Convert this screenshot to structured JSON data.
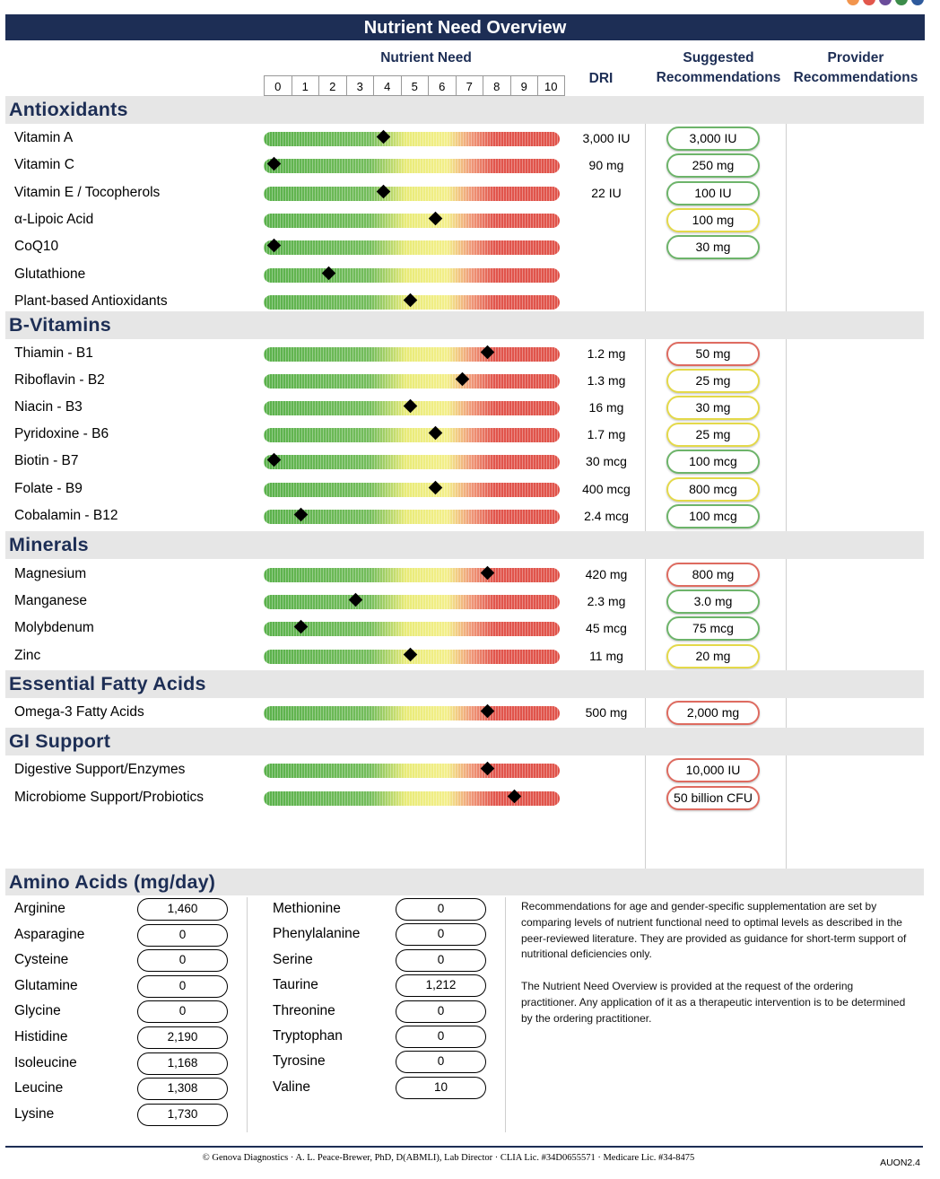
{
  "header": {
    "title": "Nutrient Need Overview",
    "nutrient_need": "Nutrient Need",
    "dri": "DRI",
    "suggested": [
      "Suggested",
      "Recommendations"
    ],
    "provider": [
      "Provider",
      "Recommendations"
    ],
    "scale": [
      "0",
      "1",
      "2",
      "3",
      "4",
      "5",
      "6",
      "7",
      "8",
      "9",
      "10"
    ],
    "dot_colors": [
      "#f2954d",
      "#e2574c",
      "#6b4c9a",
      "#3c8c4a",
      "#2e5a9c"
    ]
  },
  "sections": [
    {
      "title": "Antioxidants",
      "rows": [
        {
          "name": "Vitamin A",
          "value": 4.4,
          "dri": "3,000 IU",
          "rec": "3,000 IU",
          "rec_color": "green"
        },
        {
          "name": "Vitamin C",
          "value": 0.4,
          "dri": "90 mg",
          "rec": "250 mg",
          "rec_color": "green"
        },
        {
          "name": "Vitamin E / Tocopherols",
          "value": 4.4,
          "dri": "22 IU",
          "rec": "100 IU",
          "rec_color": "green"
        },
        {
          "name": "α-Lipoic Acid",
          "value": 6.3,
          "dri": "",
          "rec": "100 mg",
          "rec_color": "yellow"
        },
        {
          "name": "CoQ10",
          "value": 0.4,
          "dri": "",
          "rec": "30 mg",
          "rec_color": "green"
        },
        {
          "name": "Glutathione",
          "value": 2.4,
          "dri": "",
          "rec": "",
          "rec_color": ""
        },
        {
          "name": "Plant-based Antioxidants",
          "value": 5.4,
          "dri": "",
          "rec": "",
          "rec_color": ""
        }
      ]
    },
    {
      "title": "B-Vitamins",
      "rows": [
        {
          "name": "Thiamin - B1",
          "value": 8.2,
          "dri": "1.2 mg",
          "rec": "50 mg",
          "rec_color": "red"
        },
        {
          "name": "Riboflavin - B2",
          "value": 7.3,
          "dri": "1.3 mg",
          "rec": "25 mg",
          "rec_color": "yellow"
        },
        {
          "name": "Niacin - B3",
          "value": 5.4,
          "dri": "16 mg",
          "rec": "30 mg",
          "rec_color": "yellow"
        },
        {
          "name": "Pyridoxine - B6",
          "value": 6.3,
          "dri": "1.7 mg",
          "rec": "25 mg",
          "rec_color": "yellow"
        },
        {
          "name": "Biotin - B7",
          "value": 0.4,
          "dri": "30 mcg",
          "rec": "100 mcg",
          "rec_color": "green"
        },
        {
          "name": "Folate - B9",
          "value": 6.3,
          "dri": "400 mcg",
          "rec": "800 mcg",
          "rec_color": "yellow"
        },
        {
          "name": "Cobalamin - B12",
          "value": 1.4,
          "dri": "2.4 mcg",
          "rec": "100 mcg",
          "rec_color": "green"
        }
      ]
    },
    {
      "title": "Minerals",
      "rows": [
        {
          "name": "Magnesium",
          "value": 8.2,
          "dri": "420 mg",
          "rec": "800 mg",
          "rec_color": "red"
        },
        {
          "name": "Manganese",
          "value": 3.4,
          "dri": "2.3 mg",
          "rec": "3.0 mg",
          "rec_color": "green"
        },
        {
          "name": "Molybdenum",
          "value": 1.4,
          "dri": "45 mcg",
          "rec": "75 mcg",
          "rec_color": "green"
        },
        {
          "name": "Zinc",
          "value": 5.4,
          "dri": "11 mg",
          "rec": "20 mg",
          "rec_color": "yellow"
        }
      ]
    },
    {
      "title": "Essential Fatty Acids",
      "rows": [
        {
          "name": "Omega-3 Fatty Acids",
          "value": 8.2,
          "dri": "500 mg",
          "rec": "2,000 mg",
          "rec_color": "red"
        }
      ]
    },
    {
      "title": "GI Support",
      "rows": [
        {
          "name": "Digestive Support/Enzymes",
          "value": 8.2,
          "dri": "",
          "rec": "10,000 IU",
          "rec_color": "red"
        },
        {
          "name": "Microbiome Support/Probiotics",
          "value": 9.2,
          "dri": "",
          "rec": "50 billion CFU",
          "rec_color": "red"
        }
      ]
    }
  ],
  "amino": {
    "title": "Amino Acids (mg/day)",
    "left": [
      {
        "name": "Arginine",
        "value": "1,460"
      },
      {
        "name": "Asparagine",
        "value": "0"
      },
      {
        "name": "Cysteine",
        "value": "0"
      },
      {
        "name": "Glutamine",
        "value": "0"
      },
      {
        "name": "Glycine",
        "value": "0"
      },
      {
        "name": "Histidine",
        "value": "2,190"
      },
      {
        "name": "Isoleucine",
        "value": "1,168"
      },
      {
        "name": "Leucine",
        "value": "1,308"
      },
      {
        "name": "Lysine",
        "value": "1,730"
      }
    ],
    "right": [
      {
        "name": "Methionine",
        "value": "0"
      },
      {
        "name": "Phenylalanine",
        "value": "0"
      },
      {
        "name": "Serine",
        "value": "0"
      },
      {
        "name": "Taurine",
        "value": "1,212"
      },
      {
        "name": "Threonine",
        "value": "0"
      },
      {
        "name": "Tryptophan",
        "value": "0"
      },
      {
        "name": "Tyrosine",
        "value": "0"
      },
      {
        "name": "Valine",
        "value": "10"
      }
    ],
    "note1": "Recommendations for age and gender-specific supplementation are set by comparing levels of nutrient functional need to optimal levels as described in the peer-reviewed literature. They are provided as guidance for short-term support of nutritional deficiencies only.",
    "note2": "The Nutrient Need Overview is provided at the request of the ordering practitioner. Any application of it as a therapeutic intervention is to be determined by the ordering practitioner."
  },
  "footer": {
    "text": "© Genova Diagnostics · A. L. Peace-Brewer, PhD, D(ABMLI), Lab Director · CLIA Lic. #34D0655571 · Medicare Lic. #34-8475",
    "code": "AUON2.4"
  },
  "colors": {
    "navy": "#1d2e55",
    "green": "#6db46a",
    "yellow": "#e4d94a",
    "red": "#de6b60"
  }
}
